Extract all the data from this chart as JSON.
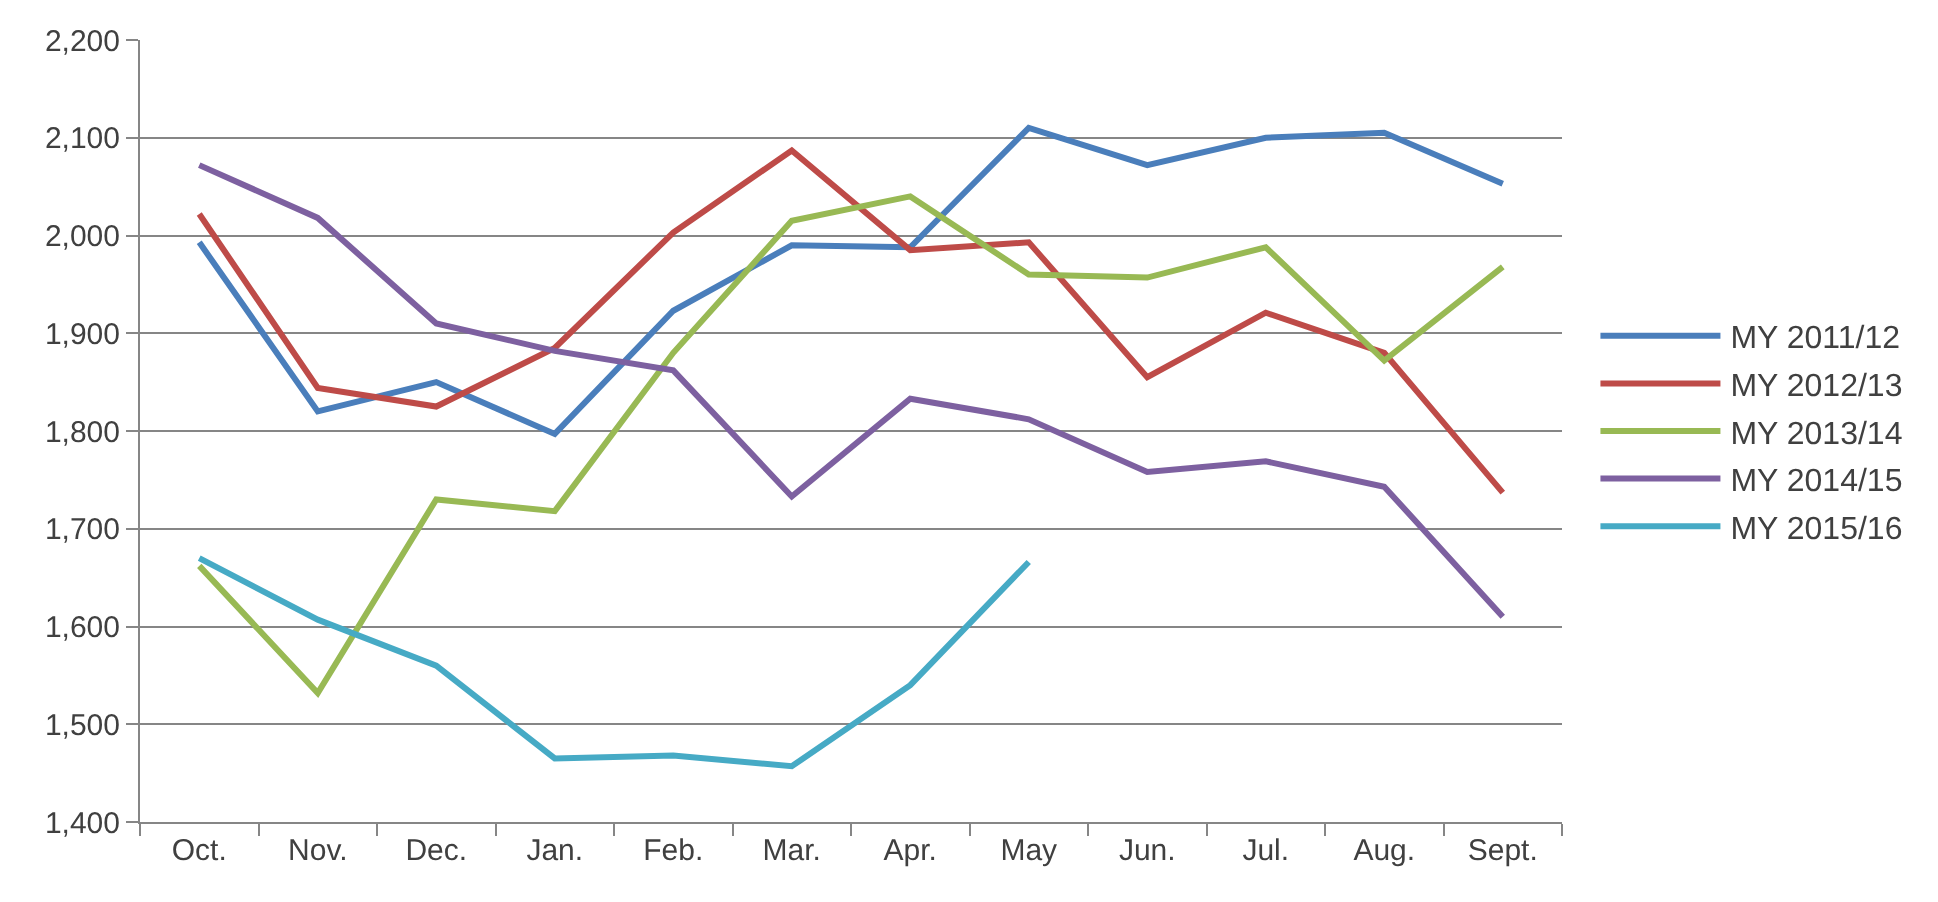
{
  "chart_data": {
    "type": "line",
    "categories": [
      "Oct.",
      "Nov.",
      "Dec.",
      "Jan.",
      "Feb.",
      "Mar.",
      "Apr.",
      "May",
      "Jun.",
      "Jul.",
      "Aug.",
      "Sept."
    ],
    "series": [
      {
        "name": "MY 2011/12",
        "color": "#4a7ebb",
        "values": [
          1993,
          1820,
          1850,
          1797,
          1923,
          1990,
          1988,
          2110,
          2072,
          2100,
          2105,
          2053
        ]
      },
      {
        "name": "MY 2012/13",
        "color": "#be4b48",
        "values": [
          2022,
          1844,
          1825,
          1885,
          2003,
          2087,
          1985,
          1993,
          1855,
          1921,
          1880,
          1737
        ]
      },
      {
        "name": "MY 2013/14",
        "color": "#98b954",
        "values": [
          1662,
          1532,
          1730,
          1718,
          1880,
          2015,
          2040,
          1960,
          1957,
          1988,
          1872,
          1968
        ]
      },
      {
        "name": "MY 2014/15",
        "color": "#7d60a0",
        "values": [
          2072,
          2018,
          1910,
          1882,
          1862,
          1733,
          1833,
          1812,
          1758,
          1769,
          1743,
          1610
        ]
      },
      {
        "name": "MY 2015/16",
        "color": "#46aac5",
        "values": [
          1670,
          1607,
          1560,
          1465,
          1468,
          1457,
          1540,
          1666,
          null,
          null,
          null,
          null
        ]
      }
    ],
    "ylim": [
      1400,
      2200
    ],
    "yticks": [
      {
        "value": 1400,
        "label": "1,400"
      },
      {
        "value": 1500,
        "label": "1,500"
      },
      {
        "value": 1600,
        "label": "1,600"
      },
      {
        "value": 1700,
        "label": "1,700"
      },
      {
        "value": 1800,
        "label": "1,800"
      },
      {
        "value": 1900,
        "label": "1,900"
      },
      {
        "value": 2000,
        "label": "2,000"
      },
      {
        "value": 2100,
        "label": "2,100"
      },
      {
        "value": 2200,
        "label": "2,200"
      }
    ],
    "grid": "y",
    "legend": "right",
    "marker": "none",
    "line_style": "solid"
  }
}
